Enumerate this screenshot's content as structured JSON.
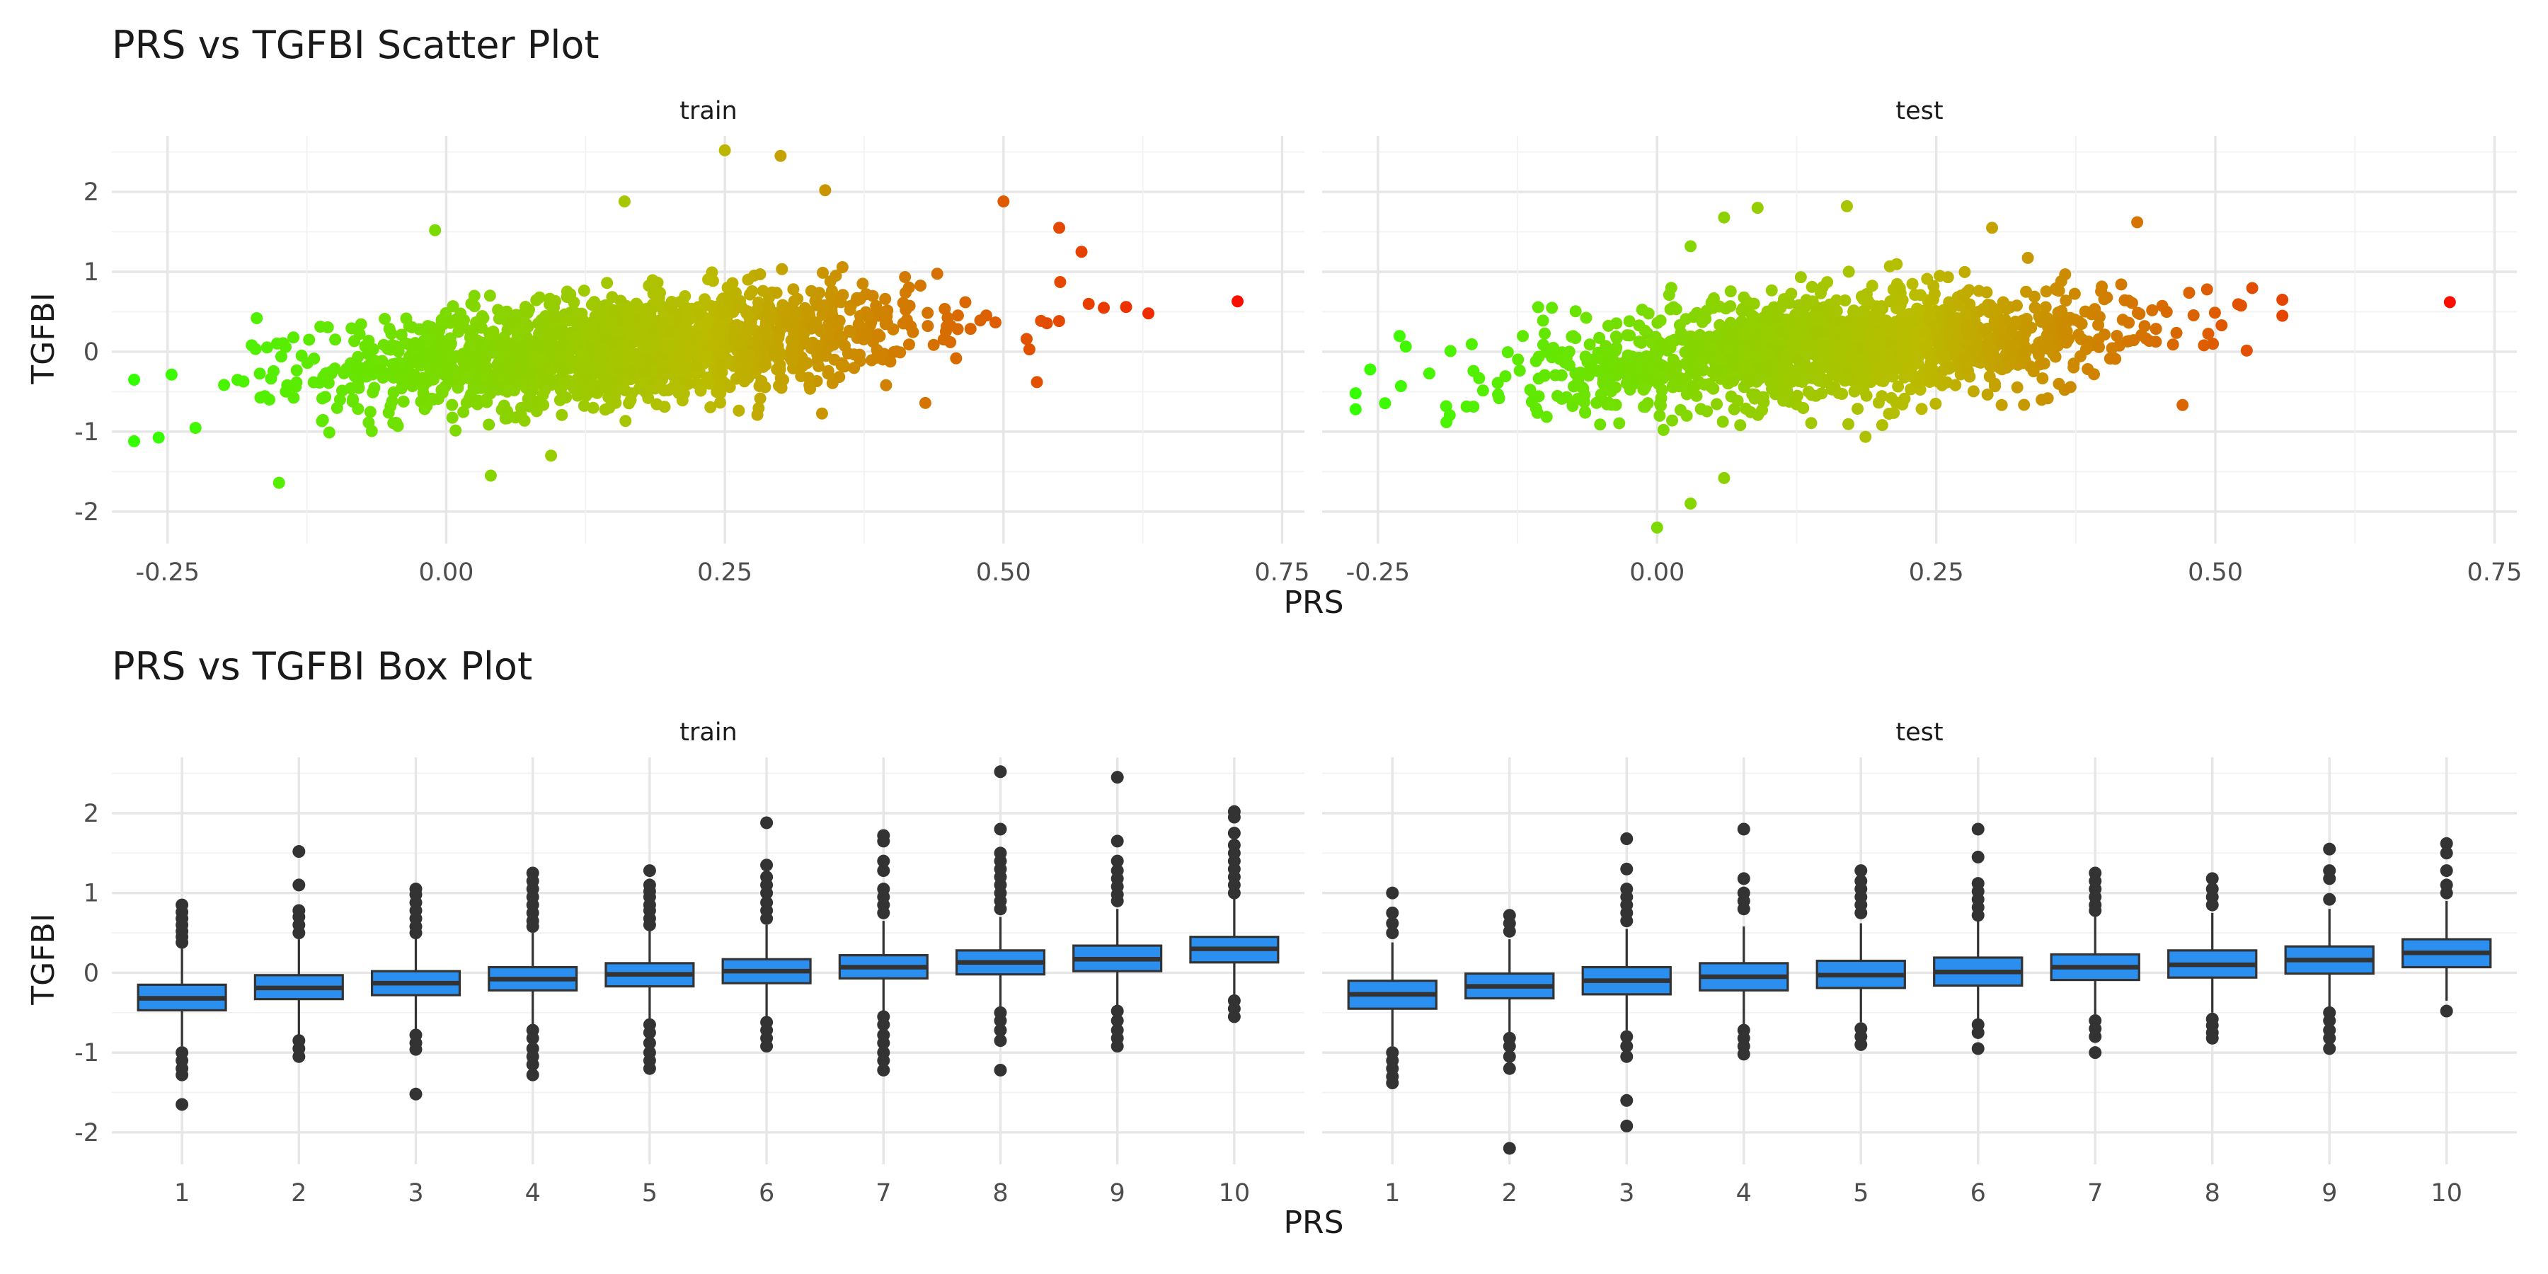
{
  "chart_data": [
    {
      "type": "scatter",
      "title": "PRS vs TGFBI Scatter Plot",
      "xlabel": "PRS",
      "ylabel": "TGFBI",
      "facets": [
        "train",
        "test"
      ],
      "xlim": [
        -0.3,
        0.77
      ],
      "ylim": [
        -2.4,
        2.7
      ],
      "x_ticks": [
        "-0.25",
        "0.00",
        "0.25",
        "0.50",
        "0.75"
      ],
      "y_ticks": [
        "-2",
        "-1",
        "0",
        "1",
        "2"
      ],
      "color_gradient": {
        "low": "#33ff00",
        "mid": "#bbbb00",
        "high": "#ff0000"
      },
      "trend": {
        "slope": 1.0,
        "intercept": -0.12
      },
      "series": [
        {
          "facet": "train",
          "n_points_approx": 5000,
          "x_range": [
            -0.28,
            0.71
          ],
          "notable_points": [
            {
              "x": 0.71,
              "y": 0.63
            },
            {
              "x": 0.63,
              "y": 0.48
            },
            {
              "x": 0.61,
              "y": 0.56
            },
            {
              "x": 0.59,
              "y": 0.55
            },
            {
              "x": 0.57,
              "y": 1.25
            },
            {
              "x": 0.55,
              "y": 1.55
            },
            {
              "x": 0.5,
              "y": 1.88
            },
            {
              "x": 0.53,
              "y": -0.38
            },
            {
              "x": 0.25,
              "y": 2.52
            },
            {
              "x": 0.3,
              "y": 2.45
            },
            {
              "x": 0.34,
              "y": 2.02
            },
            {
              "x": -0.28,
              "y": -0.35
            },
            {
              "x": -0.28,
              "y": -1.12
            },
            {
              "x": -0.15,
              "y": -1.64
            },
            {
              "x": 0.04,
              "y": -1.55
            },
            {
              "x": -0.01,
              "y": 1.52
            },
            {
              "x": -0.17,
              "y": 0.42
            },
            {
              "x": 0.16,
              "y": 1.88
            }
          ]
        },
        {
          "facet": "test",
          "n_points_approx": 4500,
          "x_range": [
            -0.27,
            0.71
          ],
          "notable_points": [
            {
              "x": 0.71,
              "y": 0.62
            },
            {
              "x": 0.56,
              "y": 0.65
            },
            {
              "x": 0.56,
              "y": 0.45
            },
            {
              "x": -0.27,
              "y": -0.52
            },
            {
              "x": -0.27,
              "y": -0.72
            },
            {
              "x": 0.0,
              "y": -2.2
            },
            {
              "x": 0.03,
              "y": -1.9
            },
            {
              "x": 0.06,
              "y": -1.58
            },
            {
              "x": 0.09,
              "y": 1.8
            },
            {
              "x": 0.17,
              "y": 1.82
            },
            {
              "x": 0.06,
              "y": 1.68
            },
            {
              "x": 0.43,
              "y": 1.62
            },
            {
              "x": 0.3,
              "y": 1.55
            },
            {
              "x": 0.03,
              "y": 1.32
            }
          ]
        }
      ]
    },
    {
      "type": "box",
      "title": "PRS vs TGFBI Box Plot",
      "xlabel": "PRS",
      "ylabel": "TGFBI",
      "facets": [
        "train",
        "test"
      ],
      "categories": [
        "1",
        "2",
        "3",
        "4",
        "5",
        "6",
        "7",
        "8",
        "9",
        "10"
      ],
      "ylim": [
        -2.4,
        2.7
      ],
      "y_ticks": [
        "-2",
        "-1",
        "0",
        "1",
        "2"
      ],
      "box_color": "#2b8ff0",
      "series": [
        {
          "facet": "train",
          "boxes": [
            {
              "q1": -0.47,
              "median": -0.32,
              "q3": -0.15,
              "whisker_low": -0.92,
              "whisker_high": 0.3,
              "outliers": [
                0.85,
                0.76,
                0.68,
                0.6,
                0.52,
                0.45,
                0.38,
                -1.0,
                -1.1,
                -1.2,
                -1.28,
                -1.65
              ]
            },
            {
              "q1": -0.33,
              "median": -0.19,
              "q3": -0.03,
              "whisker_low": -0.78,
              "whisker_high": 0.42,
              "outliers": [
                1.52,
                1.1,
                0.78,
                0.7,
                0.6,
                0.5,
                -0.85,
                -0.95,
                -1.05
              ]
            },
            {
              "q1": -0.28,
              "median": -0.13,
              "q3": 0.02,
              "whisker_low": -0.72,
              "whisker_high": 0.46,
              "outliers": [
                1.05,
                0.98,
                0.88,
                0.78,
                0.68,
                0.58,
                0.5,
                -0.78,
                -0.88,
                -0.96,
                -1.52
              ]
            },
            {
              "q1": -0.22,
              "median": -0.08,
              "q3": 0.07,
              "whisker_low": -0.66,
              "whisker_high": 0.5,
              "outliers": [
                1.25,
                1.15,
                1.05,
                0.95,
                0.85,
                0.75,
                0.65,
                0.58,
                -0.72,
                -0.82,
                -0.95,
                -1.05,
                -1.15,
                -1.28
              ]
            },
            {
              "q1": -0.17,
              "median": -0.02,
              "q3": 0.12,
              "whisker_low": -0.6,
              "whisker_high": 0.55,
              "outliers": [
                1.28,
                1.1,
                1.02,
                0.95,
                0.85,
                0.78,
                0.68,
                0.6,
                -0.65,
                -0.75,
                -0.88,
                -1.0,
                -1.1,
                -1.2
              ]
            },
            {
              "q1": -0.13,
              "median": 0.02,
              "q3": 0.17,
              "whisker_low": -0.56,
              "whisker_high": 0.6,
              "outliers": [
                1.88,
                1.35,
                1.2,
                1.1,
                1.0,
                0.88,
                0.78,
                0.68,
                -0.62,
                -0.72,
                -0.82,
                -0.92
              ]
            },
            {
              "q1": -0.07,
              "median": 0.07,
              "q3": 0.22,
              "whisker_low": -0.5,
              "whisker_high": 0.65,
              "outliers": [
                1.72,
                1.65,
                1.4,
                1.28,
                1.05,
                0.95,
                0.85,
                0.75,
                -0.55,
                -0.65,
                -0.78,
                -0.88,
                -1.0,
                -1.1,
                -1.22
              ]
            },
            {
              "q1": -0.02,
              "median": 0.13,
              "q3": 0.28,
              "whisker_low": -0.45,
              "whisker_high": 0.7,
              "outliers": [
                2.52,
                1.8,
                1.5,
                1.4,
                1.3,
                1.2,
                1.1,
                1.0,
                0.9,
                0.8,
                -0.5,
                -0.6,
                -0.72,
                -0.85,
                -1.22
              ]
            },
            {
              "q1": 0.02,
              "median": 0.17,
              "q3": 0.34,
              "whisker_low": -0.42,
              "whisker_high": 0.8,
              "outliers": [
                2.45,
                1.65,
                1.4,
                1.28,
                1.18,
                1.08,
                0.98,
                0.9,
                -0.48,
                -0.6,
                -0.72,
                -0.82,
                -0.92
              ]
            },
            {
              "q1": 0.13,
              "median": 0.3,
              "q3": 0.45,
              "whisker_low": -0.28,
              "whisker_high": 0.93,
              "outliers": [
                2.02,
                1.95,
                1.75,
                1.6,
                1.5,
                1.4,
                1.3,
                1.2,
                1.1,
                1.0,
                -0.35,
                -0.45,
                -0.55
              ]
            }
          ]
        },
        {
          "facet": "test",
          "boxes": [
            {
              "q1": -0.45,
              "median": -0.27,
              "q3": -0.1,
              "whisker_low": -0.92,
              "whisker_high": 0.38,
              "outliers": [
                1.0,
                0.75,
                0.62,
                0.5,
                -1.0,
                -1.1,
                -1.2,
                -1.3,
                -1.38
              ]
            },
            {
              "q1": -0.32,
              "median": -0.17,
              "q3": -0.01,
              "whisker_low": -0.78,
              "whisker_high": 0.42,
              "outliers": [
                0.72,
                0.62,
                0.52,
                -0.82,
                -0.92,
                -1.05,
                -1.2,
                -2.2
              ]
            },
            {
              "q1": -0.27,
              "median": -0.1,
              "q3": 0.07,
              "whisker_low": -0.72,
              "whisker_high": 0.55,
              "outliers": [
                1.68,
                1.3,
                1.05,
                0.95,
                0.85,
                0.75,
                0.65,
                -0.8,
                -0.92,
                -1.05,
                -1.6,
                -1.92
              ]
            },
            {
              "q1": -0.22,
              "median": -0.05,
              "q3": 0.12,
              "whisker_low": -0.66,
              "whisker_high": 0.58,
              "outliers": [
                1.8,
                1.18,
                1.0,
                0.9,
                0.8,
                -0.72,
                -0.82,
                -0.92,
                -1.02
              ]
            },
            {
              "q1": -0.19,
              "median": -0.03,
              "q3": 0.15,
              "whisker_low": -0.62,
              "whisker_high": 0.62,
              "outliers": [
                1.28,
                1.15,
                1.05,
                0.95,
                0.85,
                0.75,
                -0.7,
                -0.8,
                -0.9
              ]
            },
            {
              "q1": -0.16,
              "median": 0.01,
              "q3": 0.19,
              "whisker_low": -0.58,
              "whisker_high": 0.66,
              "outliers": [
                1.8,
                1.45,
                1.12,
                1.02,
                0.92,
                0.82,
                0.72,
                -0.65,
                -0.75,
                -0.95
              ]
            },
            {
              "q1": -0.09,
              "median": 0.07,
              "q3": 0.23,
              "whisker_low": -0.52,
              "whisker_high": 0.7,
              "outliers": [
                1.25,
                1.15,
                1.05,
                0.95,
                0.85,
                0.78,
                -0.6,
                -0.7,
                -0.8,
                -1.0
              ]
            },
            {
              "q1": -0.06,
              "median": 0.1,
              "q3": 0.28,
              "whisker_low": -0.5,
              "whisker_high": 0.75,
              "outliers": [
                1.18,
                1.05,
                0.95,
                0.85,
                -0.58,
                -0.66,
                -0.75,
                -0.82
              ]
            },
            {
              "q1": -0.01,
              "median": 0.16,
              "q3": 0.33,
              "whisker_low": -0.45,
              "whisker_high": 0.8,
              "outliers": [
                1.55,
                1.28,
                1.18,
                0.92,
                -0.5,
                -0.6,
                -0.72,
                -0.82,
                -0.95
              ]
            },
            {
              "q1": 0.07,
              "median": 0.25,
              "q3": 0.42,
              "whisker_low": -0.35,
              "whisker_high": 0.9,
              "outliers": [
                1.62,
                1.5,
                1.28,
                1.1,
                1.0,
                -0.48
              ]
            }
          ]
        }
      ]
    }
  ]
}
